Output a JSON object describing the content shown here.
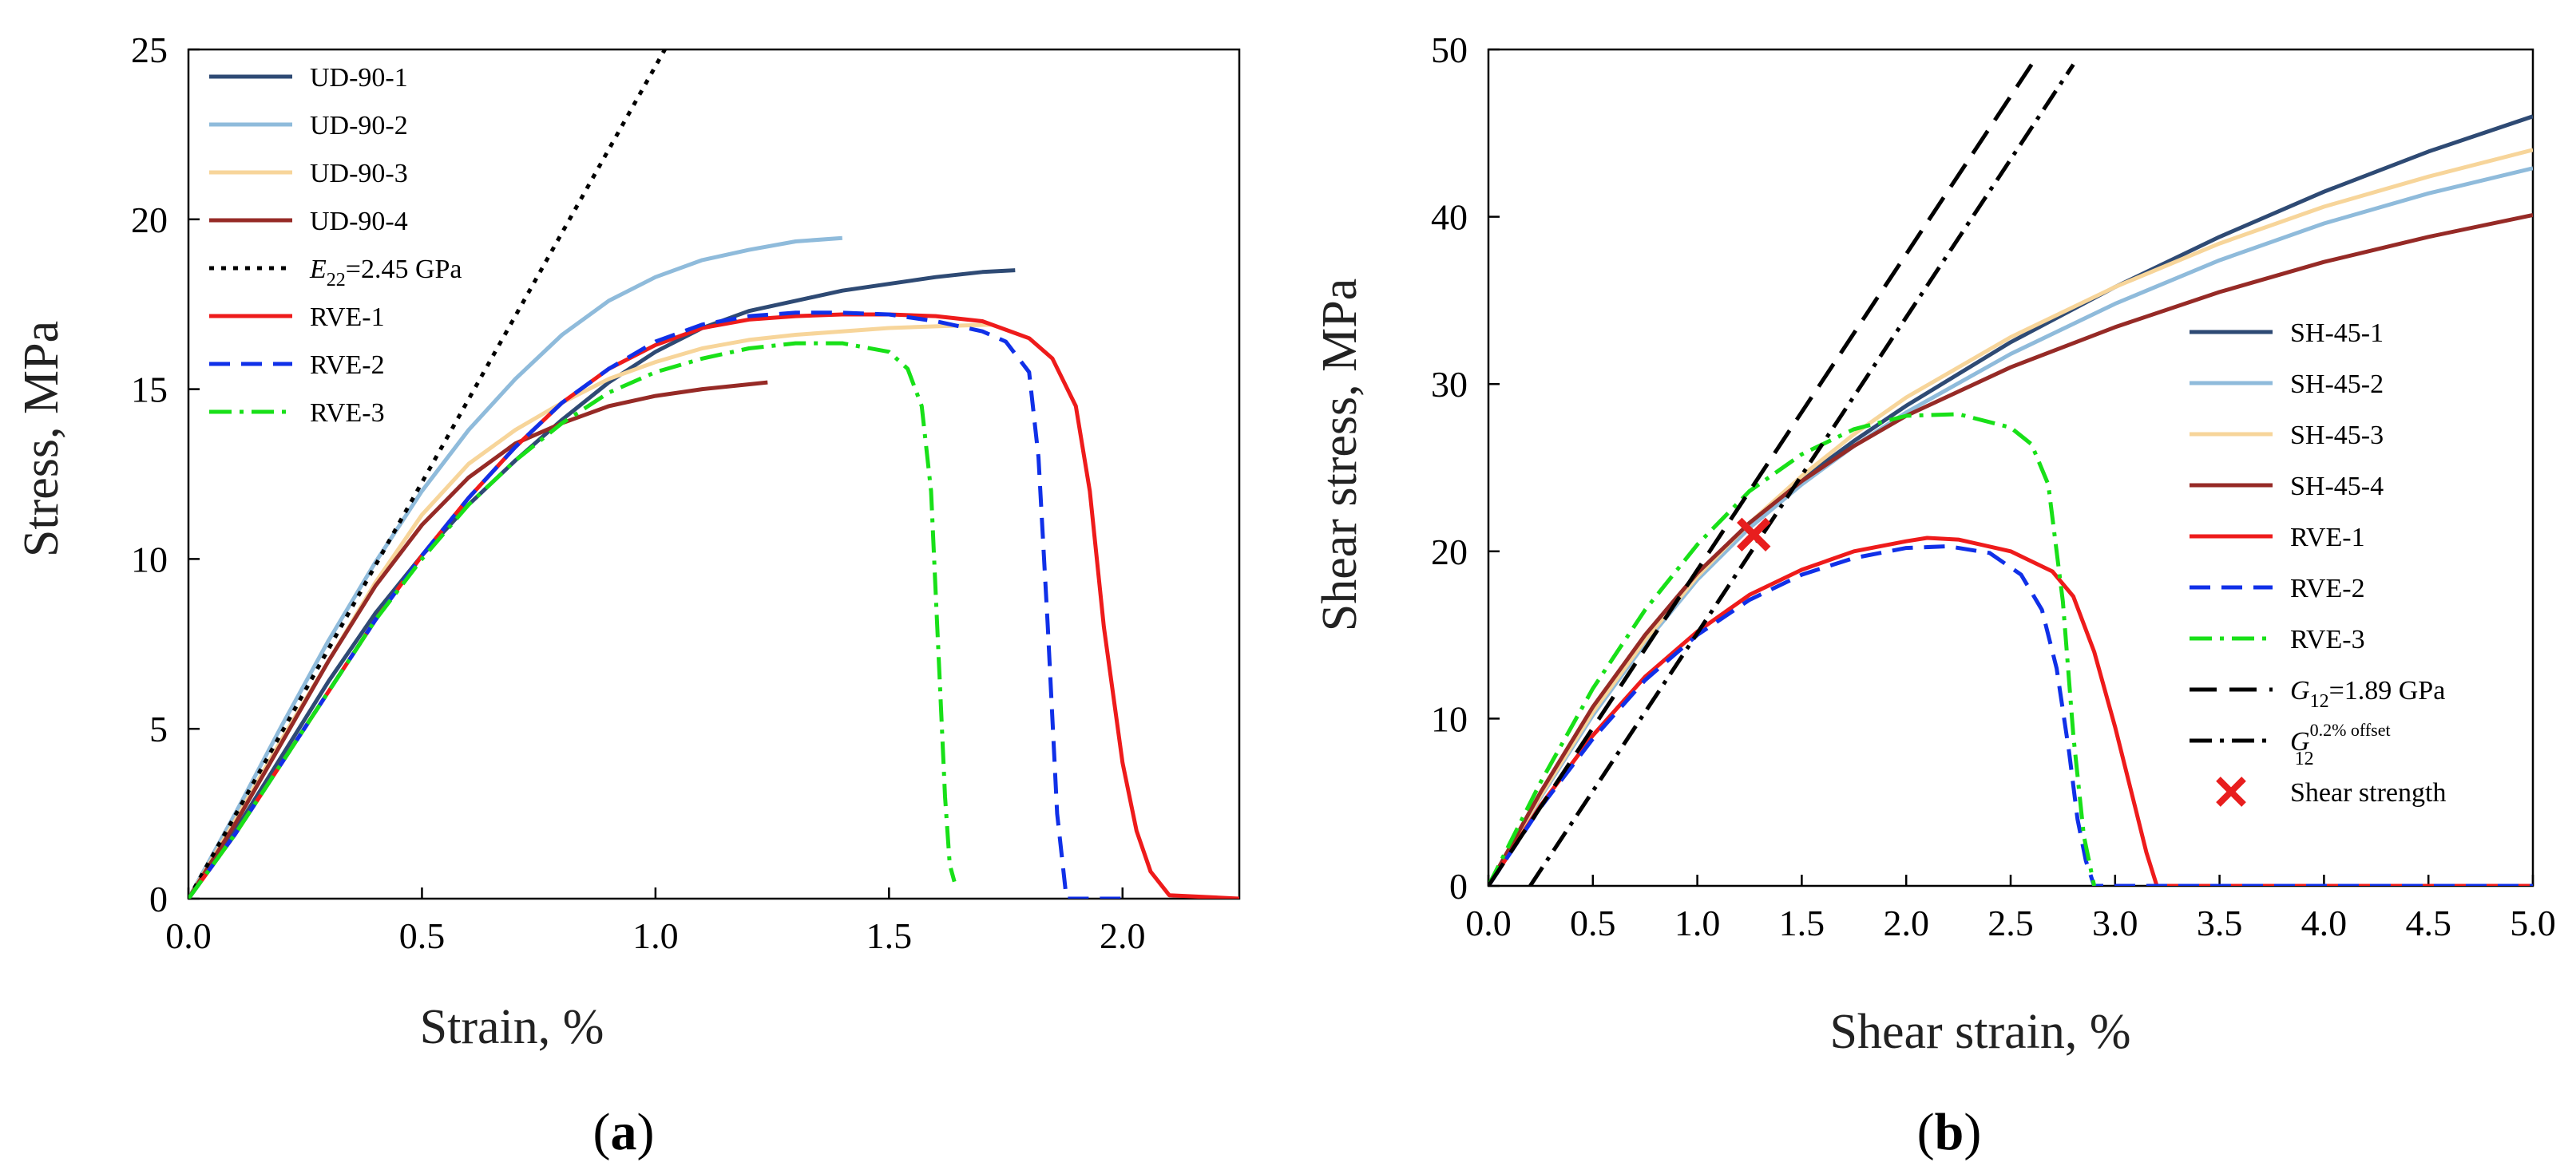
{
  "chart_data": [
    {
      "type": "line",
      "panel_label_open": "(",
      "panel_label": "a",
      "panel_label_close": ")",
      "xlabel": "Strain, %",
      "ylabel": "Stress, MPa",
      "xlim": [
        0,
        2.25
      ],
      "ylim": [
        0,
        25
      ],
      "xticks": [
        "0.0",
        "0.5",
        "1.0",
        "1.5",
        "2.0"
      ],
      "xtick_values": [
        0,
        0.5,
        1.0,
        1.5,
        2.0
      ],
      "yticks": [
        "0",
        "5",
        "10",
        "15",
        "20",
        "25"
      ],
      "ytick_values": [
        0,
        5,
        10,
        15,
        20,
        25
      ],
      "grid": false,
      "legend_position": "top-left",
      "series": [
        {
          "name": "UD-90-1",
          "color": "#2e4a74",
          "dash": "solid",
          "x": [
            0,
            0.1,
            0.2,
            0.3,
            0.4,
            0.5,
            0.6,
            0.7,
            0.8,
            0.9,
            1.0,
            1.1,
            1.2,
            1.3,
            1.4,
            1.5,
            1.6,
            1.7,
            1.77
          ],
          "y": [
            0,
            2.0,
            4.2,
            6.4,
            8.4,
            10.1,
            11.6,
            12.9,
            14.1,
            15.2,
            16.1,
            16.8,
            17.3,
            17.6,
            17.9,
            18.1,
            18.3,
            18.45,
            18.5
          ]
        },
        {
          "name": "UD-90-2",
          "color": "#8fbbdb",
          "dash": "solid",
          "x": [
            0,
            0.1,
            0.2,
            0.3,
            0.4,
            0.5,
            0.6,
            0.7,
            0.8,
            0.9,
            1.0,
            1.1,
            1.2,
            1.3,
            1.4
          ],
          "y": [
            0,
            2.5,
            5.1,
            7.6,
            9.9,
            12.0,
            13.8,
            15.3,
            16.6,
            17.6,
            18.3,
            18.8,
            19.1,
            19.35,
            19.45
          ]
        },
        {
          "name": "UD-90-3",
          "color": "#f7d59a",
          "dash": "solid",
          "x": [
            0,
            0.1,
            0.2,
            0.3,
            0.4,
            0.5,
            0.6,
            0.7,
            0.8,
            0.9,
            1.0,
            1.1,
            1.2,
            1.3,
            1.4,
            1.5,
            1.6,
            1.72
          ],
          "y": [
            0,
            2.3,
            4.7,
            7.0,
            9.3,
            11.3,
            12.8,
            13.8,
            14.6,
            15.3,
            15.8,
            16.2,
            16.45,
            16.6,
            16.7,
            16.8,
            16.85,
            16.9
          ]
        },
        {
          "name": "UD-90-4",
          "color": "#962a26",
          "dash": "solid",
          "x": [
            0,
            0.1,
            0.2,
            0.3,
            0.4,
            0.5,
            0.6,
            0.7,
            0.8,
            0.9,
            1.0,
            1.1,
            1.24
          ],
          "y": [
            0,
            2.2,
            4.6,
            7.0,
            9.2,
            11.0,
            12.4,
            13.4,
            14.0,
            14.5,
            14.8,
            15.0,
            15.2
          ]
        },
        {
          "name": "E22=2.45 GPa",
          "name_main": "E",
          "name_sub": "22",
          "name_rest": "=2.45 GPa",
          "color": "#000000",
          "dash": "dot",
          "x": [
            0,
            1.02
          ],
          "y": [
            0,
            25
          ]
        },
        {
          "name": "RVE-1",
          "color": "#ee1b1b",
          "dash": "solid",
          "x": [
            0,
            0.1,
            0.2,
            0.3,
            0.4,
            0.5,
            0.6,
            0.7,
            0.8,
            0.9,
            1.0,
            1.1,
            1.2,
            1.3,
            1.4,
            1.5,
            1.6,
            1.7,
            1.8,
            1.85,
            1.9,
            1.93,
            1.96,
            2.0,
            2.03,
            2.06,
            2.1,
            2.25
          ],
          "y": [
            0,
            1.9,
            4.0,
            6.1,
            8.2,
            10.1,
            11.8,
            13.3,
            14.6,
            15.6,
            16.3,
            16.8,
            17.05,
            17.15,
            17.2,
            17.2,
            17.15,
            17.0,
            16.5,
            15.9,
            14.5,
            12.0,
            8.0,
            4.0,
            2.0,
            0.8,
            0.1,
            0.0
          ]
        },
        {
          "name": "RVE-2",
          "color": "#1030e8",
          "dash": "dash",
          "x": [
            0,
            0.1,
            0.2,
            0.3,
            0.4,
            0.5,
            0.6,
            0.7,
            0.8,
            0.9,
            1.0,
            1.1,
            1.2,
            1.3,
            1.4,
            1.5,
            1.6,
            1.7,
            1.75,
            1.8,
            1.82,
            1.84,
            1.86,
            1.88,
            2.0
          ],
          "y": [
            0,
            1.9,
            4.0,
            6.1,
            8.2,
            10.1,
            11.8,
            13.3,
            14.6,
            15.6,
            16.4,
            16.9,
            17.15,
            17.25,
            17.25,
            17.2,
            17.0,
            16.7,
            16.4,
            15.5,
            13.0,
            8.0,
            2.5,
            0.0,
            0.0
          ]
        },
        {
          "name": "RVE-3",
          "color": "#18e018",
          "dash": "dashdot",
          "x": [
            0,
            0.1,
            0.2,
            0.3,
            0.4,
            0.5,
            0.6,
            0.7,
            0.8,
            0.9,
            1.0,
            1.1,
            1.2,
            1.3,
            1.4,
            1.5,
            1.54,
            1.57,
            1.59,
            1.6,
            1.61,
            1.62,
            1.63,
            1.64
          ],
          "y": [
            0,
            1.9,
            4.0,
            6.1,
            8.2,
            10.0,
            11.6,
            12.9,
            14.0,
            14.9,
            15.5,
            15.9,
            16.2,
            16.35,
            16.35,
            16.1,
            15.6,
            14.5,
            12.0,
            9.0,
            6.0,
            3.0,
            1.0,
            0.5
          ]
        }
      ]
    },
    {
      "type": "line",
      "panel_label_open": "(",
      "panel_label": "b",
      "panel_label_close": ")",
      "xlabel": "Shear strain, %",
      "ylabel": "Shear stress, MPa",
      "xlim": [
        0,
        5.0
      ],
      "ylim": [
        0,
        50
      ],
      "xticks": [
        "0.0",
        "0.5",
        "1.0",
        "1.5",
        "2.0",
        "2.5",
        "3.0",
        "3.5",
        "4.0",
        "4.5",
        "5.0"
      ],
      "xtick_values": [
        0,
        0.5,
        1.0,
        1.5,
        2.0,
        2.5,
        3.0,
        3.5,
        4.0,
        4.5,
        5.0
      ],
      "yticks": [
        "0",
        "10",
        "20",
        "30",
        "40",
        "50"
      ],
      "ytick_values": [
        0,
        10,
        20,
        30,
        40,
        50
      ],
      "grid": false,
      "legend_position": "right",
      "series": [
        {
          "name": "SH-45-1",
          "color": "#2e4a74",
          "dash": "solid",
          "x": [
            0,
            0.25,
            0.5,
            0.75,
            1.0,
            1.25,
            1.5,
            1.75,
            2.0,
            2.5,
            3.0,
            3.5,
            4.0,
            4.5,
            5.0
          ],
          "y": [
            0,
            5.5,
            10.5,
            14.8,
            18.6,
            21.7,
            24.3,
            26.6,
            28.7,
            32.5,
            35.8,
            38.8,
            41.5,
            43.9,
            46.0
          ]
        },
        {
          "name": "SH-45-2",
          "color": "#8fbbdb",
          "dash": "solid",
          "x": [
            0,
            0.25,
            0.5,
            0.75,
            1.0,
            1.25,
            1.5,
            1.75,
            2.0,
            2.5,
            3.0,
            3.5,
            4.0,
            4.5,
            5.0
          ],
          "y": [
            0,
            5.3,
            10.2,
            14.5,
            18.3,
            21.4,
            24.0,
            26.3,
            28.3,
            31.8,
            34.8,
            37.4,
            39.6,
            41.4,
            42.9
          ]
        },
        {
          "name": "SH-45-3",
          "color": "#f7d59a",
          "dash": "solid",
          "x": [
            0,
            0.25,
            0.5,
            0.75,
            1.0,
            1.25,
            1.5,
            1.75,
            2.0,
            2.5,
            3.0,
            3.5,
            4.0,
            4.5,
            5.0
          ],
          "y": [
            0,
            5.4,
            10.4,
            14.7,
            18.5,
            21.7,
            24.5,
            27.0,
            29.2,
            32.8,
            35.8,
            38.4,
            40.6,
            42.4,
            44.0
          ]
        },
        {
          "name": "SH-45-4",
          "color": "#962a26",
          "dash": "solid",
          "x": [
            0,
            0.25,
            0.5,
            0.75,
            1.0,
            1.25,
            1.5,
            1.75,
            2.0,
            2.5,
            3.0,
            3.5,
            4.0,
            4.5,
            5.0
          ],
          "y": [
            0,
            5.6,
            10.7,
            15.0,
            18.7,
            21.7,
            24.2,
            26.3,
            28.1,
            31.0,
            33.4,
            35.5,
            37.3,
            38.8,
            40.1
          ]
        },
        {
          "name": "RVE-1",
          "color": "#ee1b1b",
          "dash": "solid",
          "x": [
            0,
            0.25,
            0.5,
            0.75,
            1.0,
            1.25,
            1.5,
            1.75,
            2.0,
            2.1,
            2.25,
            2.5,
            2.7,
            2.8,
            2.9,
            3.0,
            3.1,
            3.15,
            3.2,
            5.0
          ],
          "y": [
            0,
            4.8,
            9.0,
            12.5,
            15.2,
            17.4,
            18.9,
            20.0,
            20.6,
            20.8,
            20.7,
            20.0,
            18.8,
            17.3,
            14.0,
            9.5,
            4.5,
            2.0,
            0.0,
            0.0
          ]
        },
        {
          "name": "RVE-2",
          "color": "#1030e8",
          "dash": "dash",
          "x": [
            0,
            0.25,
            0.5,
            0.75,
            1.0,
            1.25,
            1.5,
            1.75,
            2.0,
            2.2,
            2.4,
            2.55,
            2.65,
            2.72,
            2.78,
            2.82,
            2.86,
            2.9,
            5.0
          ],
          "y": [
            0,
            4.7,
            8.8,
            12.3,
            15.0,
            17.1,
            18.6,
            19.6,
            20.2,
            20.3,
            19.9,
            18.6,
            16.5,
            13.0,
            8.0,
            4.0,
            1.5,
            0.0,
            0.0
          ]
        },
        {
          "name": "RVE-3",
          "color": "#18e018",
          "dash": "dashdot",
          "x": [
            0,
            0.25,
            0.5,
            0.75,
            1.0,
            1.25,
            1.5,
            1.75,
            2.0,
            2.25,
            2.5,
            2.6,
            2.68,
            2.75,
            2.8,
            2.85,
            2.9
          ],
          "y": [
            0,
            6.2,
            11.8,
            16.5,
            20.4,
            23.6,
            25.8,
            27.3,
            28.1,
            28.2,
            27.4,
            26.4,
            24.0,
            17.0,
            9.0,
            3.0,
            0.0
          ]
        },
        {
          "name": "G12=1.89 GPa",
          "name_main": "G",
          "name_sub": "12",
          "name_rest": "=1.89 GPa",
          "color": "#000000",
          "dash": "longdash",
          "x": [
            0,
            2.6
          ],
          "y": [
            0,
            49.1
          ]
        },
        {
          "name": "G12 0.2% offset",
          "name_main": "G",
          "name_sub": "12",
          "name_sup": "0.2% offset",
          "color": "#000000",
          "dash": "dashdot",
          "x": [
            0.2,
            2.8
          ],
          "y": [
            0,
            49.1
          ]
        }
      ],
      "markers": [
        {
          "name": "Shear strength",
          "x": 1.27,
          "y": 21.0,
          "symbol": "x",
          "color": "#e81e1e"
        }
      ]
    }
  ]
}
